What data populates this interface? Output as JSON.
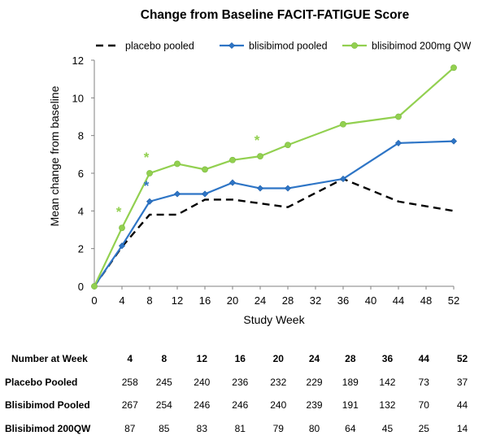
{
  "chart_data": {
    "type": "line",
    "title": "Change from Baseline FACIT-FATIGUE Score",
    "xlabel": "Study Week",
    "ylabel": "Mean change from baseline",
    "xlim": [
      0,
      52
    ],
    "ylim": [
      0,
      12
    ],
    "x_ticks": [
      "0",
      "4",
      "8",
      "12",
      "16",
      "20",
      "24",
      "28",
      "32",
      "36",
      "40",
      "44",
      "48",
      "52"
    ],
    "y_ticks": [
      "0",
      "2",
      "4",
      "6",
      "8",
      "10",
      "12"
    ],
    "grid": false,
    "legend_position": "top",
    "series": [
      {
        "name": "placebo pooled",
        "style": "dashed",
        "marker": "none",
        "color": "#000000",
        "x": [
          0,
          4,
          8,
          12,
          16,
          20,
          24,
          28,
          36,
          44,
          52
        ],
        "y": [
          0,
          2.1,
          3.8,
          3.8,
          4.6,
          4.6,
          4.4,
          4.2,
          5.7,
          4.5,
          4.0
        ]
      },
      {
        "name": "blisibimod pooled",
        "style": "solid",
        "marker": "diamond",
        "color": "#2E75C6",
        "x": [
          0,
          4,
          8,
          12,
          16,
          20,
          24,
          28,
          36,
          44,
          52
        ],
        "y": [
          0,
          2.15,
          4.5,
          4.9,
          4.9,
          5.5,
          5.2,
          5.2,
          5.7,
          7.6,
          7.7
        ]
      },
      {
        "name": "blisibimod 200mg QW",
        "style": "solid",
        "marker": "circle",
        "color": "#92D050",
        "x": [
          0,
          4,
          8,
          12,
          16,
          20,
          24,
          28,
          36,
          44,
          52
        ],
        "y": [
          0,
          3.1,
          6.0,
          6.5,
          6.2,
          6.7,
          6.9,
          7.5,
          8.6,
          9.0,
          11.6
        ]
      }
    ],
    "annotations": [
      {
        "text": "*",
        "x": 4,
        "y": 3.1,
        "color": "#92D050"
      },
      {
        "text": "*",
        "x": 8,
        "y": 6.0,
        "color": "#92D050"
      },
      {
        "text": "*",
        "x": 8,
        "y": 4.5,
        "color": "#2E75C6"
      },
      {
        "text": "*",
        "x": 24,
        "y": 6.9,
        "color": "#92D050"
      }
    ]
  },
  "table": {
    "header_label": "Number at Week",
    "weeks": [
      "4",
      "8",
      "12",
      "16",
      "20",
      "24",
      "28",
      "36",
      "44",
      "52"
    ],
    "rows": [
      {
        "label": "Placebo Pooled",
        "values": [
          "258",
          "245",
          "240",
          "236",
          "232",
          "229",
          "189",
          "142",
          "73",
          "37"
        ]
      },
      {
        "label": "Blisibimod Pooled",
        "values": [
          "267",
          "254",
          "246",
          "246",
          "240",
          "239",
          "191",
          "132",
          "70",
          "44"
        ]
      },
      {
        "label": "Blisibimod 200QW",
        "values": [
          "87",
          "85",
          "83",
          "81",
          "79",
          "80",
          "64",
          "45",
          "25",
          "14"
        ]
      }
    ]
  }
}
